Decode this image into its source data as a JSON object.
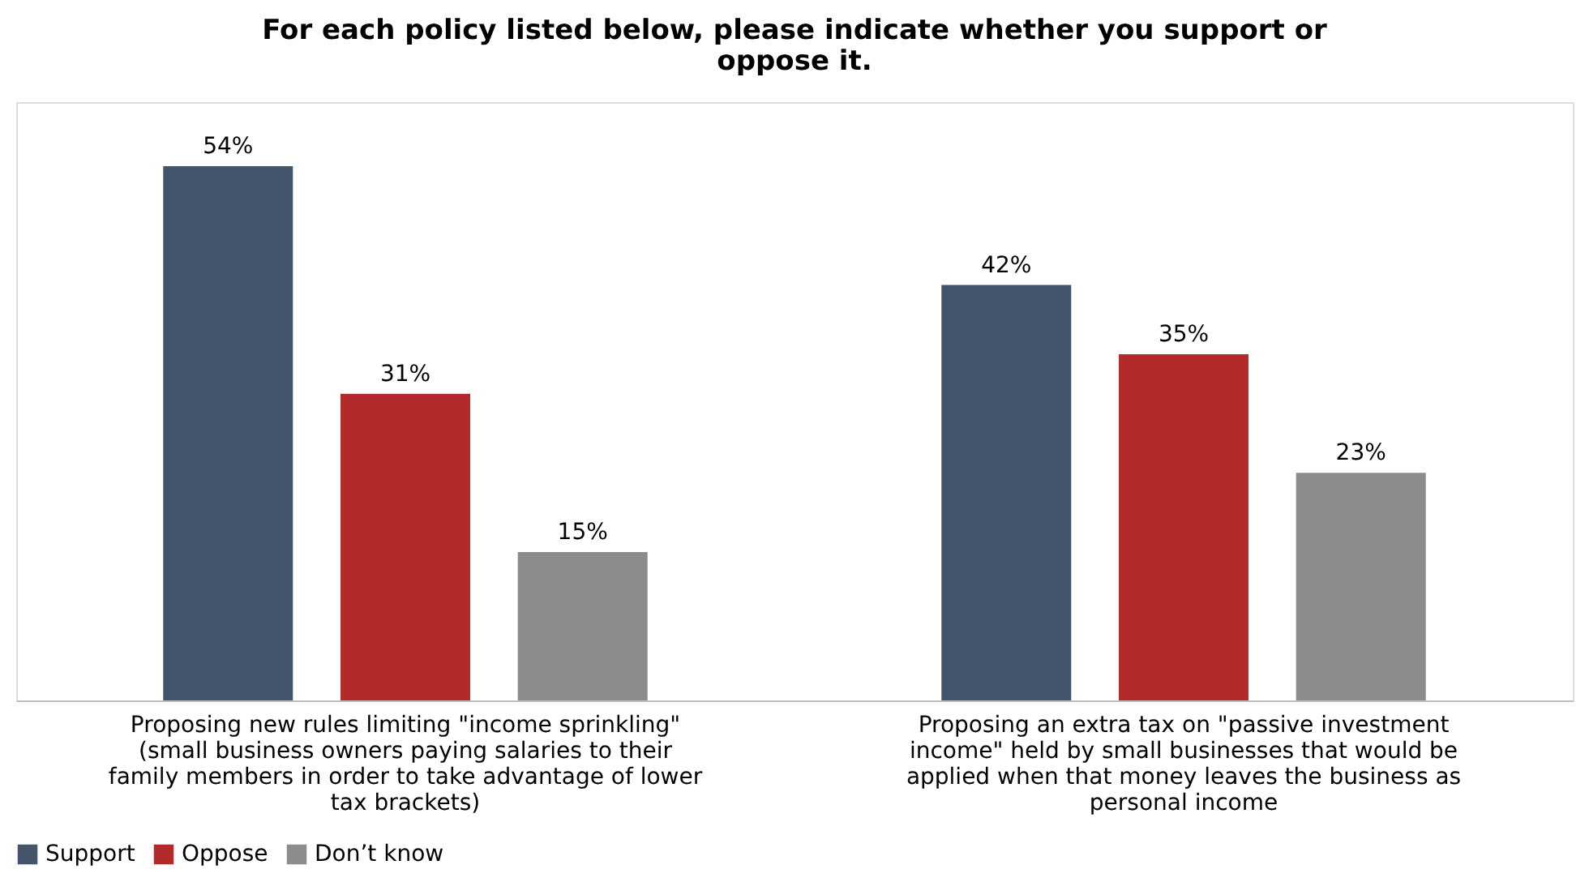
{
  "chart_data": {
    "type": "bar",
    "title": "For each policy listed below, please indicate whether you support or oppose it.",
    "categories": [
      "Proposing new rules limiting \"income sprinkling\" (small business owners paying salaries to their family members in order to take advantage of lower tax brackets)",
      "Proposing an extra tax on \"passive investment income\" held by small businesses that would be applied when that money leaves the business as personal income"
    ],
    "series": [
      {
        "name": "Support",
        "color": "#44546a",
        "values": [
          54,
          42
        ],
        "value_labels": [
          "54%",
          "42%"
        ]
      },
      {
        "name": "Oppose",
        "color": "#b22a2a",
        "values": [
          31,
          35
        ],
        "value_labels": [
          "31%",
          "35%"
        ]
      },
      {
        "name": "Don’t know",
        "color": "#8c8c8c",
        "values": [
          15,
          23
        ],
        "value_labels": [
          "15%",
          "23%"
        ]
      }
    ],
    "legend": "bottom"
  }
}
